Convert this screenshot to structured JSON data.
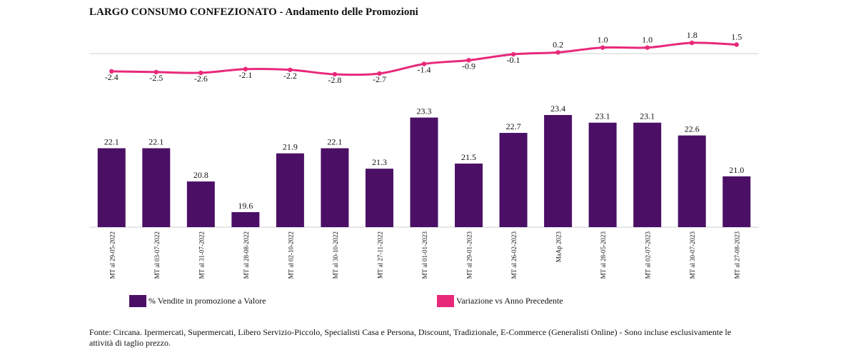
{
  "title": "LARGO CONSUMO CONFEZIONATO - Andamento delle Promozioni",
  "chart_data": {
    "type": "bar",
    "categories": [
      "MT al 29-05-2022",
      "MT al 03-07-2022",
      "MT al 31-07-2022",
      "MT al 28-08-2022",
      "MT al 02-10-2022",
      "MT al 30-10-2022",
      "MT al 27-11-2022",
      "MT al 01-01-2023",
      "MT al 29-01-2023",
      "MT al 26-02-2023",
      "MaAp 2023",
      "MT al 28-05-2023",
      "MT al 02-07-2023",
      "MT al 30-07-2023",
      "MT al 27-08-2023"
    ],
    "series": [
      {
        "name": "% Vendite in promozione a Valore",
        "type": "bar",
        "color": "#4b1066",
        "values": [
          22.1,
          22.1,
          20.8,
          19.6,
          21.9,
          22.1,
          21.3,
          23.3,
          21.5,
          22.7,
          23.4,
          23.1,
          23.1,
          22.6,
          21.0
        ]
      },
      {
        "name": "Variazione vs Anno Precedente",
        "type": "line",
        "color": "#e8297a",
        "values": [
          -2.4,
          -2.5,
          -2.6,
          -2.1,
          -2.2,
          -2.8,
          -2.7,
          -1.4,
          -0.9,
          -0.1,
          0.2,
          1.0,
          1.0,
          1.8,
          1.5
        ]
      }
    ],
    "legend_position": "bottom",
    "grid": false
  },
  "legend": {
    "bar_label": "% Vendite in promozione a Valore",
    "line_label": "Variazione vs Anno Precedente"
  },
  "source": "Fonte: Circana. Ipermercati, Supermercati, Libero Servizio-Piccolo, Specialisti Casa e Persona, Discount, Tradizionale, E-Commerce (Generalisti Online) - Sono incluse esclusivamente le attività di taglio prezzo."
}
